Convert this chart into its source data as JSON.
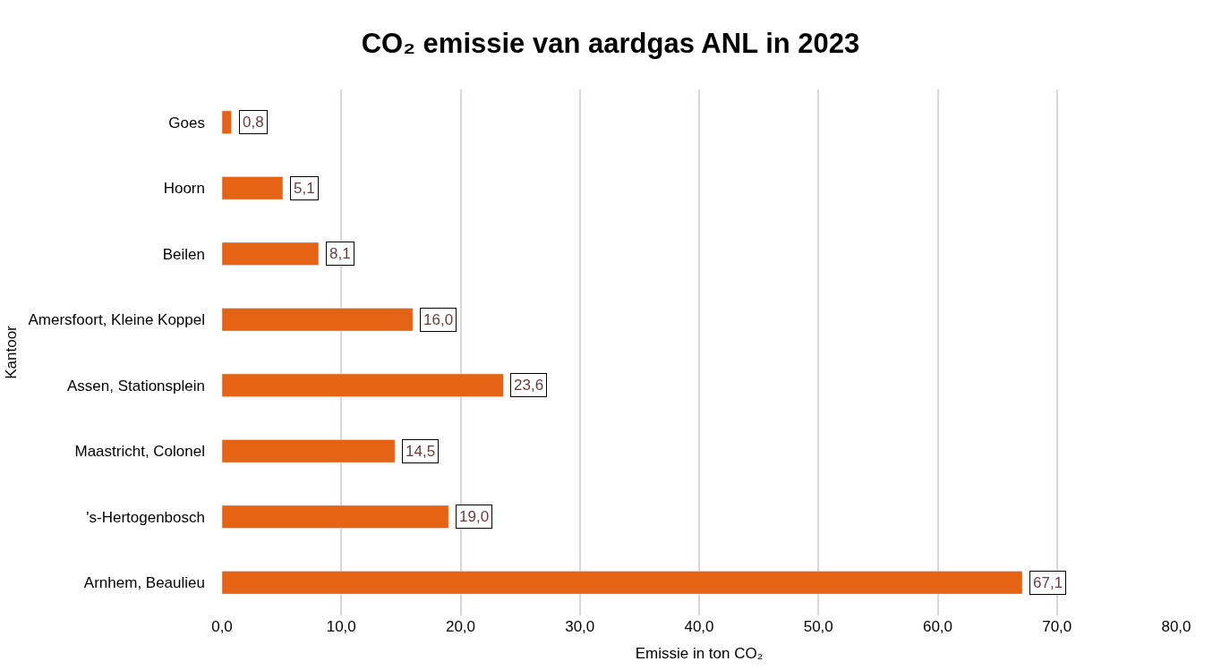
{
  "chart_data": {
    "type": "bar",
    "orientation": "horizontal",
    "title": "CO₂ emissie van aardgas ANL in 2023",
    "xlabel": "Emissie in ton CO₂",
    "ylabel": "Kantoor",
    "categories": [
      "Goes",
      "Hoorn",
      "Beilen",
      "Amersfoort, Kleine Koppel",
      "Assen, Stationsplein",
      "Maastricht, Colonel",
      "'s-Hertogenbosch",
      "Arnhem, Beaulieu"
    ],
    "values": [
      0.8,
      5.1,
      8.1,
      16.0,
      23.6,
      14.5,
      19.0,
      67.1
    ],
    "value_labels": [
      "0,8",
      "5,1",
      "8,1",
      "16,0",
      "23,6",
      "14,5",
      "19,0",
      "67,1"
    ],
    "color": "#e46314",
    "xlim": [
      0,
      80
    ],
    "xticks": [
      {
        "value": 0,
        "label": "0,0"
      },
      {
        "value": 10,
        "label": "10,0"
      },
      {
        "value": 20,
        "label": "20,0"
      },
      {
        "value": 30,
        "label": "30,0"
      },
      {
        "value": 40,
        "label": "40,0"
      },
      {
        "value": 50,
        "label": "50,0"
      },
      {
        "value": 60,
        "label": "60,0"
      },
      {
        "value": 70,
        "label": "70,0"
      },
      {
        "value": 80,
        "label": "80,0"
      }
    ],
    "grid": "x",
    "legend": false
  }
}
